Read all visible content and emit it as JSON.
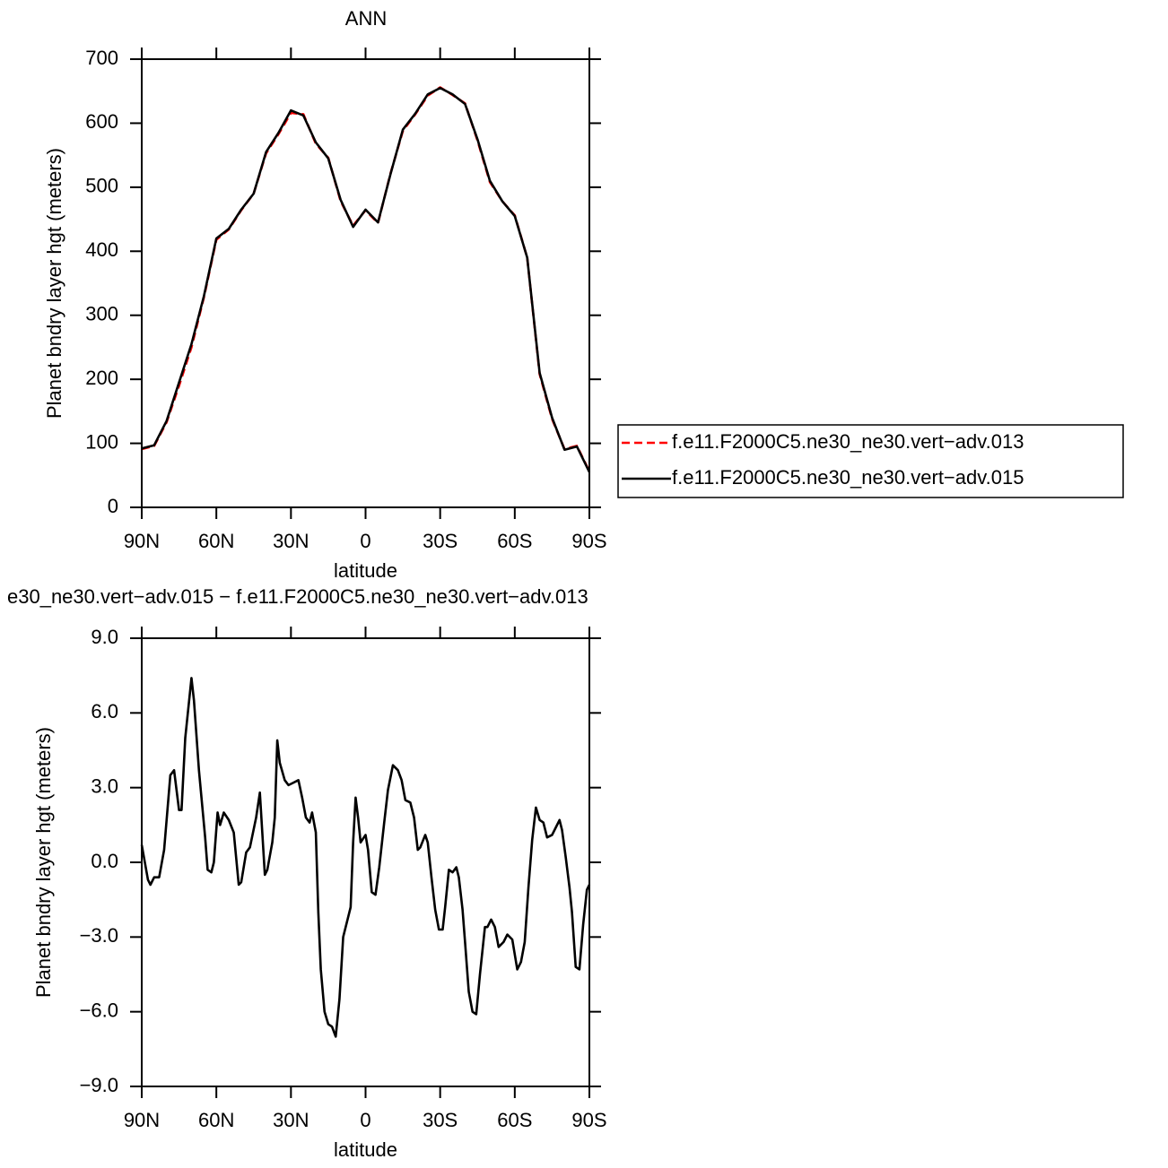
{
  "chart_data": [
    {
      "type": "line",
      "title": "ANN",
      "xlabel": "latitude",
      "ylabel": "Planet bndry layer hgt (meters)",
      "xlim": [
        90,
        -90
      ],
      "xticks": [
        {
          "value": 90,
          "label": "90N"
        },
        {
          "value": 60,
          "label": "60N"
        },
        {
          "value": 30,
          "label": "30N"
        },
        0,
        {
          "value": -30,
          "label": "30S"
        },
        {
          "value": -60,
          "label": "60S"
        },
        {
          "value": -90,
          "label": "90S"
        }
      ],
      "ylim": [
        0,
        700
      ],
      "yticks": [
        0,
        100,
        200,
        300,
        400,
        500,
        600,
        700
      ],
      "legend": "right",
      "x": [
        90,
        85,
        80,
        75,
        70,
        65,
        60,
        55,
        50,
        45,
        40,
        35,
        30,
        25,
        20,
        15,
        10,
        5,
        0,
        -5,
        -10,
        -15,
        -20,
        -25,
        -30,
        -35,
        -40,
        -45,
        -50,
        -55,
        -60,
        -65,
        -70,
        -75,
        -80,
        -85,
        -90
      ],
      "series": [
        {
          "name": "f.e11.F2000C5.ne30_ne30.vert−adv.013",
          "color": "#ff0000",
          "dash": "dashed",
          "values": [
            91,
            96,
            133,
            190,
            250,
            328,
            418,
            434,
            464,
            490,
            553,
            583,
            616,
            614,
            568,
            546,
            478,
            440,
            464,
            444,
            521,
            588,
            614,
            643,
            656,
            644,
            631,
            573,
            508,
            478,
            456,
            390,
            208,
            138,
            91,
            96,
            56
          ]
        },
        {
          "name": "f.e11.F2000C5.ne30_ne30.vert−adv.015",
          "color": "#000000",
          "dash": "solid",
          "values": [
            92,
            97,
            135,
            195,
            255,
            330,
            420,
            435,
            465,
            490,
            555,
            585,
            620,
            612,
            570,
            545,
            480,
            438,
            465,
            445,
            520,
            590,
            615,
            645,
            655,
            645,
            630,
            575,
            510,
            478,
            455,
            390,
            210,
            140,
            90,
            95,
            55
          ]
        }
      ]
    },
    {
      "type": "line",
      "title": "e30_ne30.vert−adv.015 − f.e11.F2000C5.ne30_ne30.vert−adv.013",
      "xlabel": "latitude",
      "ylabel": "Planet bndry layer hgt (meters)",
      "xlim": [
        90,
        -90
      ],
      "xticks": [
        {
          "value": 90,
          "label": "90N"
        },
        {
          "value": 60,
          "label": "60N"
        },
        {
          "value": 30,
          "label": "30N"
        },
        0,
        {
          "value": -30,
          "label": "30S"
        },
        {
          "value": -60,
          "label": "60S"
        },
        {
          "value": -90,
          "label": "90S"
        }
      ],
      "ylim": [
        -9,
        9
      ],
      "yticks": [
        {
          "value": -9,
          "label": "−9.0"
        },
        {
          "value": -6,
          "label": "−6.0"
        },
        {
          "value": -3,
          "label": "−3.0"
        },
        {
          "value": 0,
          "label": "0.0"
        },
        {
          "value": 3,
          "label": "3.0"
        },
        {
          "value": 6,
          "label": "6.0"
        },
        {
          "value": 9,
          "label": "9.0"
        }
      ],
      "x": [
        90,
        87.5,
        86.5,
        85,
        83,
        81,
        78.5,
        77,
        75,
        74,
        72.5,
        70,
        69,
        67,
        64.5,
        63.5,
        62,
        61,
        59.5,
        58.5,
        57,
        55,
        53,
        51,
        50,
        48,
        46.5,
        44,
        42.5,
        40.5,
        39.5,
        37.5,
        36.5,
        35.5,
        34.5,
        32.5,
        31,
        29,
        27,
        25.5,
        24,
        22.5,
        21.5,
        20,
        19,
        18,
        16.5,
        15,
        13.5,
        12,
        10.5,
        9,
        7.5,
        6,
        5,
        4,
        3,
        2,
        0,
        -1,
        -2.5,
        -4,
        -5.5,
        -7.5,
        -9,
        -11,
        -13,
        -14.5,
        -16,
        -18,
        -19.5,
        -21,
        -22,
        -24,
        -25,
        -26.5,
        -28,
        -29.5,
        -31,
        -32,
        -33.5,
        -35,
        -36.5,
        -37.5,
        -39,
        -40,
        -41.5,
        -43,
        -44.5,
        -46,
        -48,
        -49,
        -50.5,
        -52,
        -53.5,
        -55.5,
        -57,
        -59,
        -61,
        -62.5,
        -64,
        -65.5,
        -67,
        -68.5,
        -70,
        -71.5,
        -73,
        -75,
        -76.5,
        -78,
        -79,
        -80.5,
        -82,
        -83,
        -84.5,
        -86,
        -87.5,
        -89,
        -90
      ],
      "series": [
        {
          "color": "#000000",
          "dash": "solid",
          "values": [
            0.7,
            -0.7,
            -0.9,
            -0.6,
            -0.6,
            0.5,
            3.5,
            3.7,
            2.1,
            2.1,
            5,
            7.4,
            6.5,
            3.7,
            1,
            -0.3,
            -0.4,
            0,
            2.0,
            1.5,
            2.0,
            1.7,
            1.2,
            -0.9,
            -0.8,
            0.4,
            0.6,
            1.8,
            2.8,
            -0.5,
            -0.3,
            0.8,
            1.8,
            4.9,
            4.0,
            3.3,
            3.1,
            3.2,
            3.3,
            2.6,
            1.8,
            1.6,
            2.0,
            1.2,
            -2,
            -4.3,
            -6.0,
            -6.5,
            -6.6,
            -7.0,
            -5.5,
            -3,
            -2.4,
            -1.8,
            0.8,
            2.6,
            1.8,
            0.8,
            1.1,
            0.5,
            -1.2,
            -1.3,
            -0.2,
            1.6,
            2.9,
            3.9,
            3.7,
            3.3,
            2.5,
            2.4,
            1.8,
            0.5,
            0.6,
            1.1,
            0.8,
            -0.6,
            -1.9,
            -2.7,
            -2.7,
            -1.8,
            -0.3,
            -0.4,
            -0.2,
            -0.6,
            -1.9,
            -3.2,
            -5.2,
            -6.0,
            -6.1,
            -4.5,
            -2.6,
            -2.6,
            -2.3,
            -2.6,
            -3.4,
            -3.2,
            -2.9,
            -3.1,
            -4.3,
            -4.0,
            -3.2,
            -1,
            0.9,
            2.2,
            1.7,
            1.6,
            1.0,
            1.1,
            1.4,
            1.7,
            1.3,
            0.2,
            -1,
            -2.0,
            -4.2,
            -4.3,
            -2.5,
            -1.1,
            -0.9
          ]
        }
      ]
    }
  ]
}
